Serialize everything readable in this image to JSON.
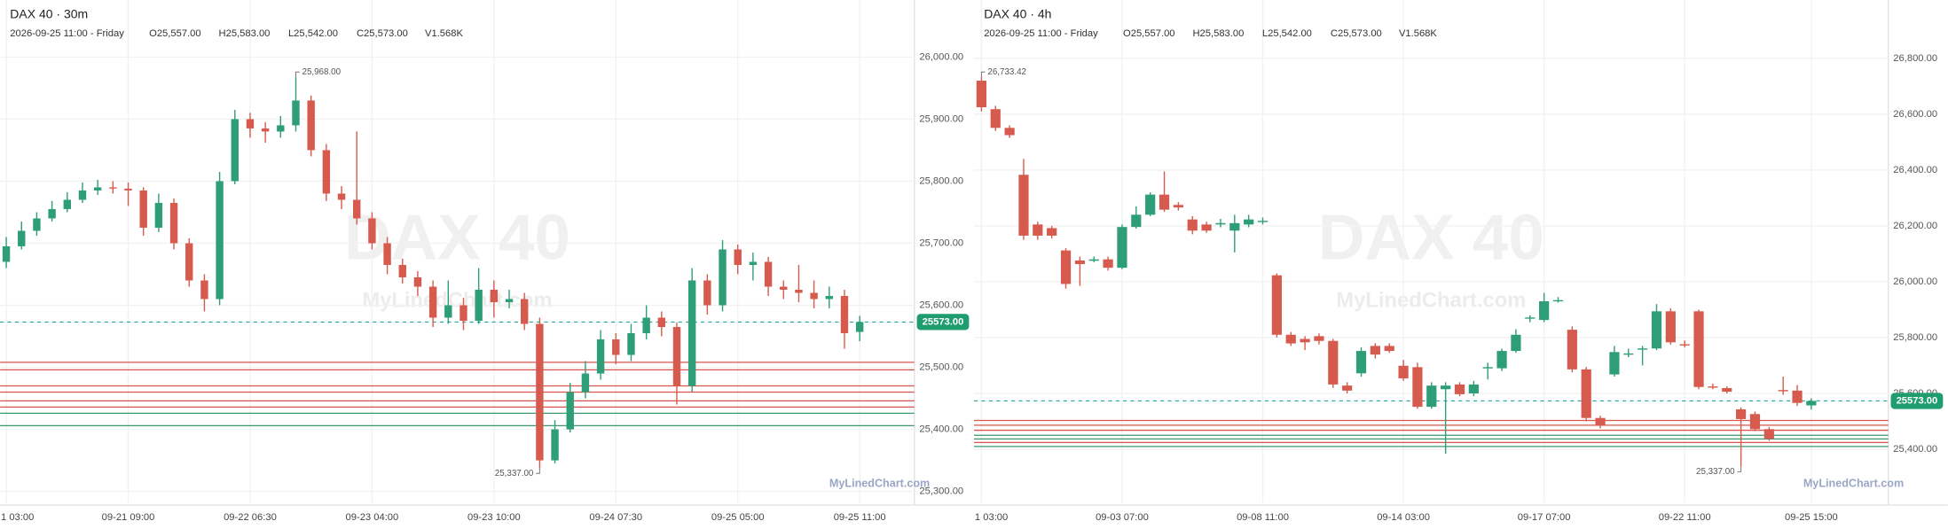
{
  "chart_data": [
    {
      "type": "candlestick",
      "title": "DAX 40 · 30m",
      "date_label": "2026-09-25 11:00 - Friday",
      "ohlc_labels": [
        "O25,557.00",
        "H25,583.00",
        "L25,542.00",
        "C25,573.00",
        "V1.568K"
      ],
      "watermark": "DAX 40",
      "watermark_site": "MyLinedChart.com",
      "brand": "MyLinedChart.com",
      "categories": [
        "1 03:00",
        null,
        null,
        null,
        null,
        null,
        null,
        null,
        "09-21 09:00",
        null,
        null,
        null,
        null,
        null,
        null,
        null,
        "09-22 06:30",
        null,
        null,
        null,
        null,
        null,
        null,
        null,
        "09-23 04:00",
        null,
        null,
        null,
        null,
        null,
        null,
        null,
        "09-23 10:00",
        null,
        null,
        null,
        null,
        null,
        null,
        null,
        "09-24 07:30",
        null,
        null,
        null,
        null,
        null,
        null,
        null,
        "09-25 05:00",
        null,
        null,
        null,
        null,
        null,
        null,
        null,
        "09-25 11:00"
      ],
      "open": [
        25670,
        25695,
        25720,
        25740,
        25755,
        25770,
        25785,
        25790,
        25788,
        25785,
        25725,
        25765,
        25700,
        25640,
        25610,
        25800,
        25900,
        25885,
        25880,
        25890,
        25930,
        25850,
        25780,
        25770,
        25740,
        25700,
        25665,
        25645,
        25630,
        25580,
        25600,
        25575,
        25625,
        25605,
        25610,
        25570,
        25350,
        25400,
        25460,
        25490,
        25545,
        25520,
        25555,
        25580,
        25565,
        25470,
        25640,
        25600,
        25690,
        25665,
        25670,
        25630,
        25625,
        25620,
        25610,
        25615,
        25557
      ],
      "high": [
        25710,
        25735,
        25750,
        25768,
        25782,
        25798,
        25802,
        25800,
        25798,
        25790,
        25780,
        25772,
        25708,
        25650,
        25815,
        25915,
        25910,
        25895,
        25905,
        25968,
        25938,
        25860,
        25792,
        25880,
        25750,
        25710,
        25675,
        25655,
        25640,
        25640,
        25612,
        25660,
        25640,
        25625,
        25620,
        25580,
        25415,
        25475,
        25510,
        25560,
        25555,
        25570,
        25600,
        25590,
        25572,
        25660,
        25650,
        25705,
        25698,
        25685,
        25678,
        25640,
        25665,
        25640,
        25630,
        25625,
        25583
      ],
      "low": [
        25660,
        25690,
        25712,
        25735,
        25750,
        25765,
        25778,
        25780,
        25760,
        25712,
        25718,
        25690,
        25630,
        25590,
        25600,
        25795,
        25870,
        25862,
        25870,
        25880,
        25840,
        25768,
        25755,
        25730,
        25690,
        25650,
        25635,
        25615,
        25565,
        25570,
        25560,
        25570,
        25580,
        25595,
        25560,
        25337,
        25345,
        25395,
        25450,
        25480,
        25505,
        25510,
        25545,
        25550,
        25440,
        25460,
        25585,
        25590,
        25650,
        25640,
        25615,
        25610,
        25605,
        25595,
        25595,
        25530,
        25542
      ],
      "close": [
        25695,
        25720,
        25740,
        25755,
        25770,
        25785,
        25790,
        25788,
        25785,
        25725,
        25765,
        25700,
        25640,
        25610,
        25800,
        25900,
        25885,
        25880,
        25890,
        25930,
        25850,
        25780,
        25770,
        25740,
        25700,
        25665,
        25645,
        25630,
        25580,
        25600,
        25575,
        25625,
        25605,
        25610,
        25570,
        25350,
        25400,
        25460,
        25490,
        25545,
        25520,
        25555,
        25580,
        25565,
        25470,
        25640,
        25600,
        25690,
        25665,
        25670,
        25630,
        25625,
        25620,
        25610,
        25615,
        25555,
        25573
      ],
      "up_color": "#2e9e78",
      "down_color": "#d65b4e",
      "ylim": [
        25282,
        26092
      ],
      "yticks": [
        {
          "value": 26000,
          "label": "26,000.00"
        },
        {
          "value": 25900,
          "label": "25,900.00"
        },
        {
          "value": 25800,
          "label": "25,800.00"
        },
        {
          "value": 25700,
          "label": "25,700.00"
        },
        {
          "value": 25600,
          "label": "25,600.00"
        },
        {
          "value": 25500,
          "label": "25,500.00"
        },
        {
          "value": 25400,
          "label": "25,400.00"
        },
        {
          "value": 25300,
          "label": "25,300.00"
        }
      ],
      "grid": true,
      "levels": [
        {
          "value": 25508,
          "color": "#d9534f"
        },
        {
          "value": 25496,
          "color": "#d9534f"
        },
        {
          "value": 25470,
          "color": "#d9534f"
        },
        {
          "value": 25460,
          "color": "#d9534f"
        },
        {
          "value": 25446,
          "color": "#d9534f"
        },
        {
          "value": 25436,
          "color": "#d9534f"
        },
        {
          "value": 25426,
          "color": "#3a9a6b"
        },
        {
          "value": 25406,
          "color": "#3a9a6b"
        }
      ],
      "last_price_label": "25573.00",
      "max_label": "25,968.00",
      "min_label": "25,337.00"
    },
    {
      "type": "candlestick",
      "title": "DAX 40 · 4h",
      "date_label": "2026-09-25 11:00 - Friday",
      "ohlc_labels": [
        "O25,557.00",
        "H25,583.00",
        "L25,542.00",
        "C25,573.00",
        "V1.568K"
      ],
      "watermark": "DAX 40",
      "watermark_site": "MyLinedChart.com",
      "brand": "MyLinedChart.com",
      "categories": [
        "1 03:00",
        null,
        null,
        null,
        null,
        null,
        null,
        null,
        null,
        null,
        "09-03 07:00",
        null,
        null,
        null,
        null,
        null,
        null,
        null,
        null,
        null,
        "09-08 11:00",
        null,
        null,
        null,
        null,
        null,
        null,
        null,
        null,
        null,
        "09-14 03:00",
        null,
        null,
        null,
        null,
        null,
        null,
        null,
        null,
        null,
        "09-17 07:00",
        null,
        null,
        null,
        null,
        null,
        null,
        null,
        null,
        null,
        "09-22 11:00",
        null,
        null,
        null,
        null,
        null,
        null,
        null,
        null,
        "09-25 15:00"
      ],
      "open": [
        26720,
        26618,
        26551,
        26383,
        26205,
        26192,
        26112,
        26076,
        26075,
        26080,
        26050,
        26196,
        26240,
        26312,
        26275,
        26223,
        26205,
        26205,
        26183,
        26205,
        26215,
        26023,
        25810,
        25795,
        25805,
        25788,
        25628,
        25672,
        25770,
        25770,
        25699,
        25694,
        25552,
        25615,
        25632,
        25600,
        25690,
        25690,
        25752,
        25868,
        25863,
        25930,
        25828,
        25686,
        25512,
        25668,
        25741,
        25759,
        25761,
        25894,
        25776,
        25894,
        25625,
        25619,
        25543,
        25526,
        25472,
        25612,
        25610,
        25557
      ],
      "high": [
        26733.42,
        26630,
        26560,
        26440,
        26215,
        26200,
        26120,
        26090,
        26090,
        26090,
        26205,
        26270,
        26320,
        26395,
        26285,
        26235,
        26215,
        26225,
        26240,
        26240,
        26230,
        26030,
        25820,
        25805,
        25815,
        25795,
        25640,
        25765,
        25780,
        25780,
        25720,
        25710,
        25640,
        25640,
        25640,
        25645,
        25710,
        25760,
        25830,
        25880,
        25960,
        25945,
        25840,
        25695,
        25520,
        25770,
        25760,
        25770,
        25920,
        25905,
        25790,
        25900,
        25635,
        25625,
        25550,
        25535,
        25480,
        25660,
        25630,
        25583
      ],
      "low": [
        26610,
        26540,
        26515,
        26150,
        26150,
        26155,
        25975,
        25985,
        26070,
        26040,
        26045,
        26190,
        26235,
        26250,
        26255,
        26170,
        26175,
        26195,
        26105,
        26195,
        26205,
        25800,
        25770,
        25755,
        25775,
        25620,
        25600,
        25660,
        25725,
        25745,
        25645,
        25545,
        25545,
        25384,
        25590,
        25590,
        25650,
        25680,
        25745,
        25855,
        25855,
        25925,
        25675,
        25500,
        25475,
        25660,
        25730,
        25700,
        25755,
        25775,
        25765,
        25615,
        25615,
        25600,
        25337,
        25465,
        25430,
        25595,
        25555,
        25542
      ],
      "close": [
        26625,
        26551,
        26525,
        26165,
        26165,
        26165,
        25992,
        26063,
        26080,
        26050,
        26196,
        26240,
        26312,
        26258,
        26266,
        26183,
        26183,
        26210,
        26210,
        26223,
        26218,
        25810,
        25779,
        25783,
        25788,
        25632,
        25610,
        25752,
        25739,
        25752,
        25654,
        25552,
        25628,
        25628,
        25597,
        25632,
        25694,
        25752,
        25810,
        25872,
        25930,
        25934,
        25686,
        25512,
        25486,
        25748,
        25743,
        25761,
        25894,
        25783,
        25774,
        25623,
        25623,
        25606,
        25508,
        25472,
        25437,
        25610,
        25566,
        25573
      ],
      "up_color": "#2e9e78",
      "down_color": "#d65b4e",
      "ylim": [
        25209,
        27009
      ],
      "yticks": [
        {
          "value": 26800,
          "label": "26,800.00"
        },
        {
          "value": 26600,
          "label": "26,600.00"
        },
        {
          "value": 26400,
          "label": "26,400.00"
        },
        {
          "value": 26200,
          "label": "26,200.00"
        },
        {
          "value": 26000,
          "label": "26,000.00"
        },
        {
          "value": 25800,
          "label": "25,800.00"
        },
        {
          "value": 25600,
          "label": "25,600.00"
        },
        {
          "value": 25400,
          "label": "25,400.00"
        }
      ],
      "grid": true,
      "levels": [
        {
          "value": 25503,
          "color": "#d9534f"
        },
        {
          "value": 25486,
          "color": "#d9534f"
        },
        {
          "value": 25468,
          "color": "#d9534f"
        },
        {
          "value": 25450,
          "color": "#3a9a6b"
        },
        {
          "value": 25437,
          "color": "#3a9a6b"
        },
        {
          "value": 25424,
          "color": "#d9534f"
        },
        {
          "value": 25410,
          "color": "#3a9a6b"
        }
      ],
      "last_price_label": "25573.00",
      "max_label": "26,733.42",
      "min_label": "25,337.00"
    }
  ]
}
